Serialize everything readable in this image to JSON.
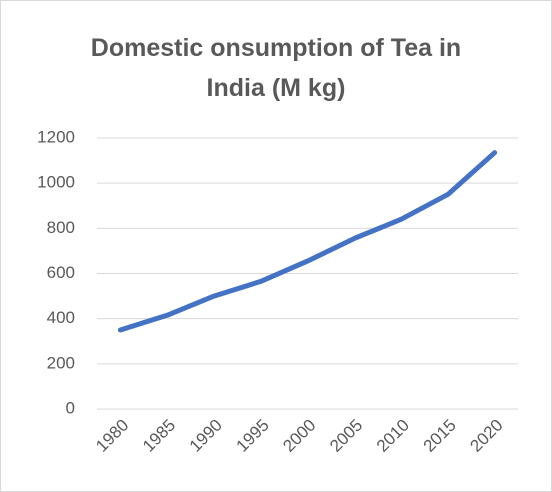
{
  "chart_data": {
    "type": "line",
    "title": "Domestic onsumption of Tea in India (M kg)",
    "categories": [
      "1980",
      "1985",
      "1990",
      "1995",
      "2000",
      "2005",
      "2010",
      "2015",
      "2020"
    ],
    "values": [
      350,
      415,
      500,
      565,
      655,
      755,
      840,
      950,
      1135
    ],
    "color": "#4472c4",
    "ylim": [
      0,
      1200
    ],
    "yticks": [
      0,
      200,
      400,
      600,
      800,
      1000,
      1200
    ],
    "grid": true
  }
}
